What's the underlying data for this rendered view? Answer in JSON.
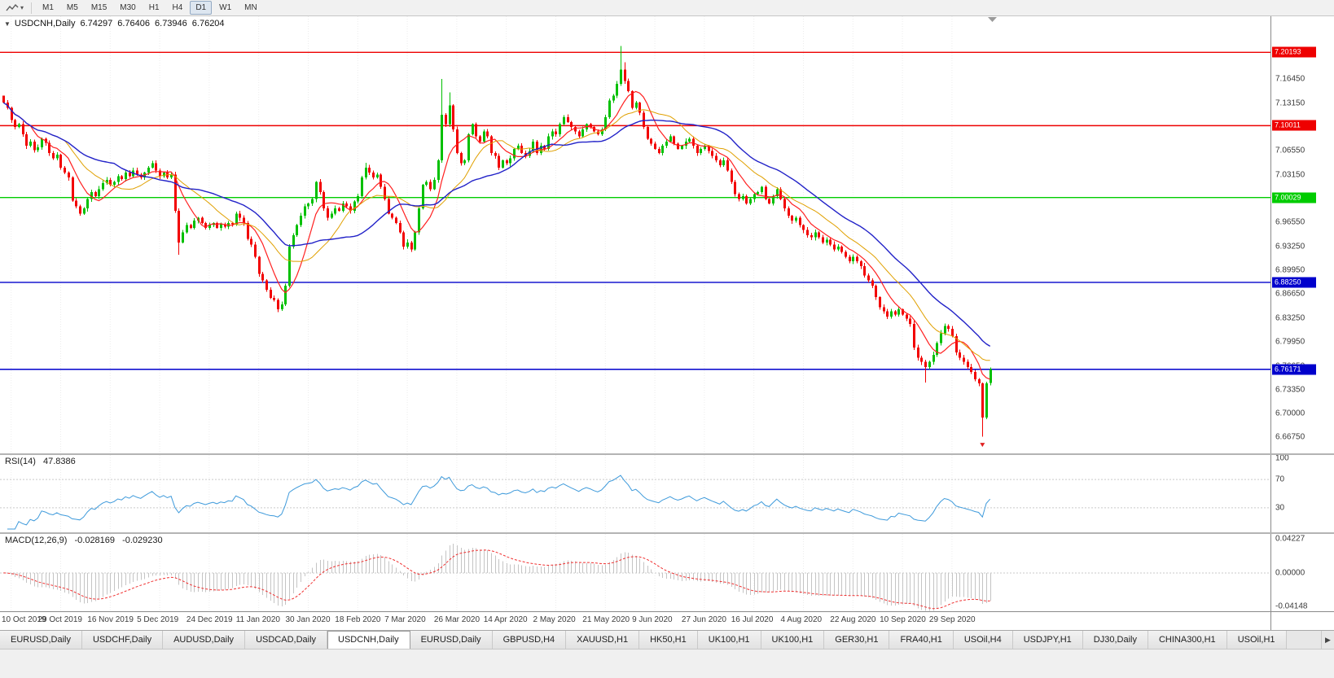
{
  "toolbar": {
    "chart_type_button": {
      "icon": "zigzag-chart-icon",
      "dropdown_icon": "▾"
    },
    "timeframes": [
      "M1",
      "M5",
      "M15",
      "M30",
      "H1",
      "H4",
      "D1",
      "W1",
      "MN"
    ],
    "active_timeframe": "D1"
  },
  "chart": {
    "collapse_icon": "▼",
    "title_symbol": "USDCNH,Daily",
    "ohlc": {
      "open": "6.74297",
      "high": "6.76406",
      "low": "6.73946",
      "close": "6.76204"
    }
  },
  "indicators": {
    "rsi": {
      "name": "RSI(14)",
      "value": "47.8386",
      "color": "#3e9adb",
      "levels": [
        70,
        30
      ],
      "axis_labels": [
        "100",
        "70",
        "30"
      ]
    },
    "macd": {
      "name": "MACD(12,26,9)",
      "value_main": "-0.028169",
      "value_signal": "-0.029230",
      "axis_top": "0.04227",
      "axis_zero": "0.00000",
      "axis_bottom": "-0.04148",
      "range_top": 0.04227,
      "range_bottom": -0.04148,
      "hist_color": "#c4c4c4",
      "signal_color": "#f03030"
    }
  },
  "chart_data": {
    "type": "candlestick",
    "symbol": "USDCNH",
    "timeframe": "Daily",
    "y_range": {
      "top": 7.252,
      "bottom": 6.645
    },
    "y_ticks": [
      "7.16450",
      "7.13150",
      "7.09850",
      "7.06550",
      "7.03150",
      "6.99850",
      "6.96550",
      "6.93250",
      "6.89950",
      "6.86650",
      "6.83250",
      "6.79950",
      "6.76650",
      "6.73350",
      "6.70000",
      "6.66750"
    ],
    "x_labels": [
      "10 Oct 2019",
      "29 Oct 2019",
      "16 Nov 2019",
      "5 Dec 2019",
      "24 Dec 2019",
      "11 Jan 2020",
      "30 Jan 2020",
      "18 Feb 2020",
      "7 Mar 2020",
      "26 Mar 2020",
      "14 Apr 2020",
      "2 May 2020",
      "21 May 2020",
      "9 Jun 2020",
      "27 Jun 2020",
      "16 Jul 2020",
      "4 Aug 2020",
      "22 Aug 2020",
      "10 Sep 2020",
      "29 Sep 2020"
    ],
    "x_label_first_bar": 2,
    "x_label_step": 13,
    "closes": [
      7.132,
      7.125,
      7.108,
      7.098,
      7.102,
      7.088,
      7.072,
      7.078,
      7.066,
      7.07,
      7.082,
      7.076,
      7.062,
      7.055,
      7.06,
      7.042,
      7.035,
      7.028,
      6.996,
      6.988,
      6.978,
      6.985,
      6.998,
      7.008,
      7.002,
      7.012,
      7.02,
      7.025,
      7.018,
      7.022,
      7.03,
      7.026,
      7.035,
      7.03,
      7.038,
      7.032,
      7.028,
      7.035,
      7.042,
      7.048,
      7.038,
      7.03,
      7.035,
      7.028,
      7.032,
      6.982,
      6.938,
      6.952,
      6.962,
      6.958,
      6.968,
      6.972,
      6.965,
      6.958,
      6.962,
      6.965,
      6.958,
      6.963,
      6.96,
      6.965,
      6.963,
      6.978,
      6.972,
      6.965,
      6.943,
      6.935,
      6.918,
      6.894,
      6.885,
      6.872,
      6.861,
      6.858,
      6.845,
      6.852,
      6.878,
      6.932,
      6.948,
      6.962,
      6.975,
      6.988,
      6.992,
      6.998,
      7.022,
      7.008,
      6.985,
      6.972,
      6.978,
      6.985,
      6.982,
      6.992,
      6.988,
      6.982,
      6.995,
      7.002,
      7.028,
      7.042,
      7.035,
      7.028,
      7.032,
      7.015,
      6.998,
      6.978,
      6.972,
      6.965,
      6.952,
      6.932,
      6.938,
      6.928,
      6.952,
      6.985,
      7.018,
      7.022,
      7.012,
      7.025,
      7.052,
      7.115,
      7.102,
      7.128,
      7.095,
      7.062,
      7.048,
      7.052,
      7.088,
      7.102,
      7.085,
      7.078,
      7.092,
      7.085,
      7.062,
      7.058,
      7.042,
      7.052,
      7.048,
      7.055,
      7.068,
      7.072,
      7.062,
      7.058,
      7.065,
      7.078,
      7.062,
      7.072,
      7.068,
      7.085,
      7.092,
      7.088,
      7.102,
      7.112,
      7.105,
      7.098,
      7.092,
      7.085,
      7.095,
      7.102,
      7.098,
      7.092,
      7.088,
      7.095,
      7.112,
      7.135,
      7.142,
      7.158,
      7.178,
      7.162,
      7.148,
      7.125,
      7.132,
      7.118,
      7.098,
      7.082,
      7.075,
      7.068,
      7.062,
      7.072,
      7.078,
      7.085,
      7.075,
      7.068,
      7.072,
      7.078,
      7.082,
      7.072,
      7.062,
      7.068,
      7.072,
      7.065,
      7.058,
      7.052,
      7.045,
      7.052,
      7.038,
      7.022,
      7.005,
      6.998,
      7.002,
      6.992,
      6.998,
      7.005,
      7.008,
      7.015,
      6.998,
      6.992,
      7.002,
      7.012,
      6.998,
      6.985,
      6.975,
      6.968,
      6.972,
      6.962,
      6.955,
      6.948,
      6.945,
      6.952,
      6.945,
      6.938,
      6.942,
      6.935,
      6.928,
      6.932,
      6.925,
      6.918,
      6.912,
      6.918,
      6.912,
      6.905,
      6.892,
      6.885,
      6.878,
      6.862,
      6.848,
      6.842,
      6.835,
      6.842,
      6.838,
      6.845,
      6.838,
      6.832,
      6.825,
      6.792,
      6.778,
      6.772,
      6.765,
      6.772,
      6.782,
      6.798,
      6.812,
      6.822,
      6.818,
      6.808,
      6.785,
      6.778,
      6.772,
      6.765,
      6.758,
      6.748,
      6.742,
      6.695,
      6.742,
      6.762
    ],
    "last_candle": {
      "open": 6.74297,
      "high": 6.76406,
      "low": 6.73946,
      "close": 6.76204
    },
    "wick_overrides": {
      "0": {
        "h": 7.1385
      },
      "46": {
        "l": 6.921
      },
      "72": {
        "l": 6.841
      },
      "95": {
        "h": 7.0485
      },
      "115": {
        "h": 7.1648
      },
      "117": {
        "h": 7.1465
      },
      "162": {
        "h": 7.2105
      },
      "163": {
        "h": 7.188
      },
      "242": {
        "l": 6.7435
      },
      "257": {
        "l": 6.668
      }
    },
    "bull_color": "#00c000",
    "bear_color": "#f20000",
    "moving_averages": [
      {
        "period": 8,
        "color": "#ff2020",
        "width": 1.2
      },
      {
        "period": 17,
        "color": "#e0a000",
        "width": 1
      },
      {
        "period": 30,
        "color": "#2222c8",
        "width": 1.4
      }
    ],
    "hlines": [
      {
        "price": 7.20193,
        "color": "#ee0000",
        "label": "7.20193"
      },
      {
        "price": 7.10011,
        "color": "#ee0000",
        "label": "7.10011"
      },
      {
        "price": 7.00029,
        "color": "#00cc00",
        "label": "7.00029"
      },
      {
        "price": 6.8825,
        "color": "#0000cc",
        "label": "6.88250"
      },
      {
        "price": 6.76171,
        "color": "#0000cc",
        "label": "6.76171"
      }
    ],
    "arrow_marker": {
      "bar": 257,
      "price": 6.6595,
      "color": "#e02020"
    }
  },
  "tabs": [
    {
      "label": "EURUSD,Daily"
    },
    {
      "label": "USDCHF,Daily"
    },
    {
      "label": "AUDUSD,Daily"
    },
    {
      "label": "USDCAD,Daily"
    },
    {
      "label": "USDCNH,Daily",
      "active": true
    },
    {
      "label": "EURUSD,Daily"
    },
    {
      "label": "GBPUSD,H4"
    },
    {
      "label": "XAUUSD,H1"
    },
    {
      "label": "HK50,H1"
    },
    {
      "label": "UK100,H1"
    },
    {
      "label": "UK100,H1"
    },
    {
      "label": "GER30,H1"
    },
    {
      "label": "FRA40,H1"
    },
    {
      "label": "USOil,H4"
    },
    {
      "label": "USDJPY,H1"
    },
    {
      "label": "DJ30,Daily"
    },
    {
      "label": "CHINA300,H1"
    },
    {
      "label": "USOil,H1"
    }
  ],
  "tab_scroll_right_icon": "▶"
}
